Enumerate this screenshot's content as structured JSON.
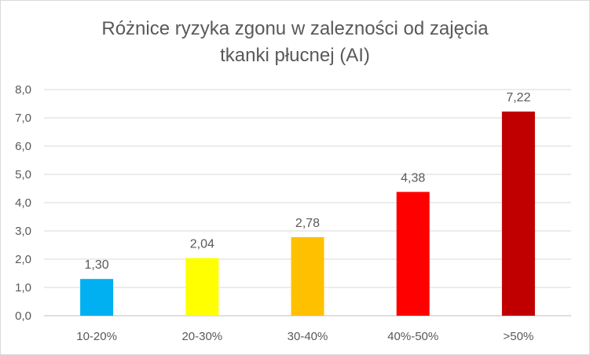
{
  "chart_data": {
    "type": "bar",
    "title_lines": [
      "Różnice ryzyka zgonu w zalezności od zajęcia",
      "tkanki płucnej (AI)"
    ],
    "categories": [
      "10-20%",
      "20-30%",
      "30-40%",
      "40%-50%",
      ">50%"
    ],
    "values": [
      1.3,
      2.04,
      2.78,
      4.38,
      7.22
    ],
    "value_labels": [
      "1,30",
      "2,04",
      "2,78",
      "4,38",
      "7,22"
    ],
    "bar_colors": [
      "#00b0f0",
      "#ffff00",
      "#ffc000",
      "#ff0000",
      "#c00000"
    ],
    "ylim": [
      0,
      8
    ],
    "y_ticks": [
      "0,0",
      "1,0",
      "2,0",
      "3,0",
      "4,0",
      "5,0",
      "6,0",
      "7,0",
      "8,0"
    ],
    "grid": true,
    "xlabel": "",
    "ylabel": "",
    "legend": "none"
  }
}
